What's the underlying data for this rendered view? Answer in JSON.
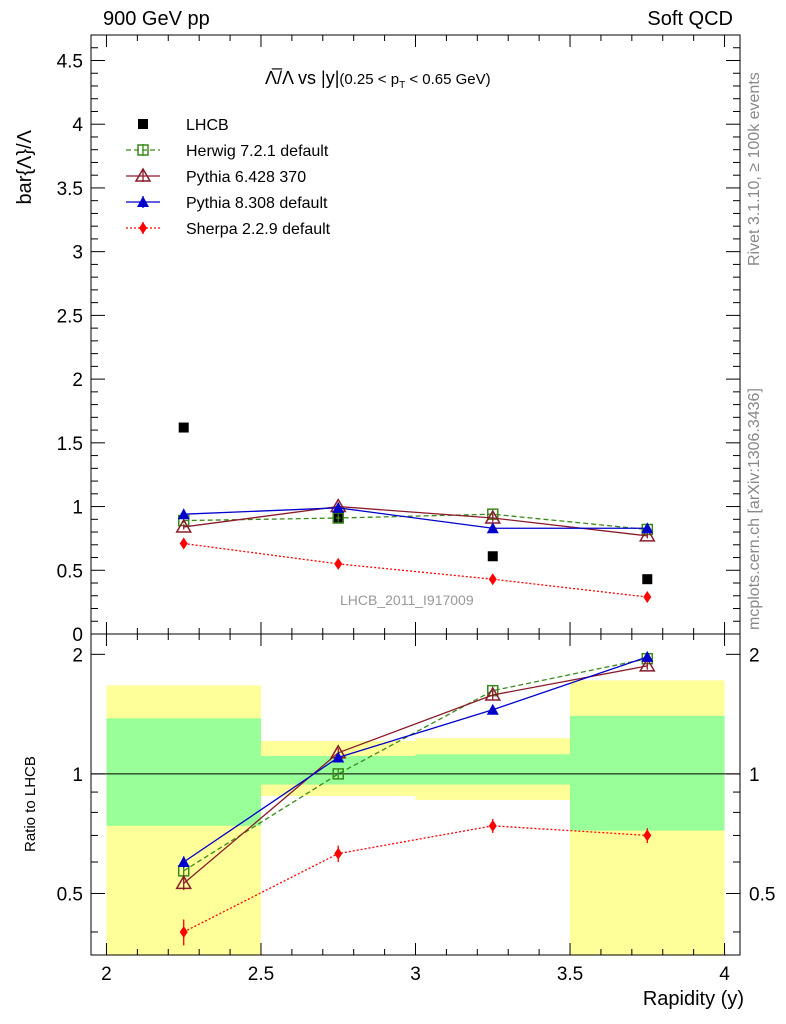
{
  "header": {
    "left": "900 GeV pp",
    "right": "Soft QCD"
  },
  "side_text": {
    "rivet": "Rivet 3.1.10, ≥ 100k events",
    "mcplots": "mcplots.cern.ch [arXiv:1306.3436]"
  },
  "plot_title": {
    "main": "Λ̅/Λ vs |y|",
    "sub_open": "(0.25 < p",
    "sub_T": "T",
    "sub_close": " < 0.65 GeV)"
  },
  "watermark": "LHCB_2011_I917009",
  "colors": {
    "data": "#000000",
    "herwig": "#3a8a1a",
    "pythia6": "#8b1a2b",
    "pythia8": "#0000cc",
    "sherpa": "#ff0000",
    "band_outer": "#ffff99",
    "band_inner": "#99ff99"
  },
  "chart_data": [
    {
      "type": "scatter",
      "panel": "main",
      "title": "Λ̅/Λ vs |y| (0.25 < pT < 0.65 GeV)",
      "ylabel": "bar{Λ}/Λ",
      "xlim": [
        1.95,
        4.05
      ],
      "ylim": [
        0,
        4.7
      ],
      "yticks": [
        0,
        0.5,
        1,
        1.5,
        2,
        2.5,
        3,
        3.5,
        4,
        4.5
      ],
      "ytick_labels": [
        "0",
        "0.5",
        "1",
        "1.5",
        "2",
        "2.5",
        "3",
        "3.5",
        "4",
        "4.5"
      ],
      "x": [
        2.25,
        2.75,
        3.25,
        3.75
      ],
      "series": [
        {
          "name": "LHCB",
          "values": [
            1.62,
            0.91,
            0.61,
            0.43
          ],
          "errors": [
            0.01,
            0.01,
            0.01,
            0.01
          ]
        },
        {
          "name": "Herwig 7.2.1 default",
          "values": [
            0.89,
            0.91,
            0.94,
            0.82
          ],
          "errors": [
            0.02,
            0.03,
            0.03,
            0.03
          ]
        },
        {
          "name": "Pythia 6.428 370",
          "values": [
            0.84,
            1.0,
            0.91,
            0.77
          ],
          "errors": [
            0.02,
            0.03,
            0.03,
            0.02
          ]
        },
        {
          "name": "Pythia 8.308 default",
          "values": [
            0.94,
            0.99,
            0.83,
            0.83
          ],
          "errors": [
            0.03,
            0.03,
            0.02,
            0.03
          ]
        },
        {
          "name": "Sherpa 2.2.9 default",
          "values": [
            0.71,
            0.55,
            0.43,
            0.29
          ],
          "errors": [
            0.03,
            0.02,
            0.02,
            0.02
          ]
        }
      ],
      "legend": "top-left"
    },
    {
      "type": "scatter",
      "panel": "ratio",
      "ylabel": "Ratio to LHCB",
      "xlabel": "Rapidity (y)",
      "xlim": [
        1.95,
        4.05
      ],
      "ylim": [
        0.35,
        2.25
      ],
      "xticks": [
        2,
        2.5,
        3,
        3.5,
        4
      ],
      "xtick_labels": [
        "2",
        "2.5",
        "3",
        "3.5",
        "4"
      ],
      "yticks": [
        0.5,
        1,
        2
      ],
      "ytick_labels": [
        "0.5",
        "1",
        "2"
      ],
      "x": [
        2.25,
        2.75,
        3.25,
        3.75
      ],
      "bins": [
        [
          2.0,
          2.5
        ],
        [
          2.5,
          3.0
        ],
        [
          3.0,
          3.5
        ],
        [
          3.5,
          4.0
        ]
      ],
      "band_outer": [
        [
          0.35,
          1.67
        ],
        [
          0.88,
          1.21
        ],
        [
          0.86,
          1.23
        ],
        [
          0.35,
          1.72
        ]
      ],
      "band_inner": [
        [
          0.74,
          1.38
        ],
        [
          0.94,
          1.11
        ],
        [
          0.94,
          1.12
        ],
        [
          0.72,
          1.4
        ]
      ],
      "series": [
        {
          "name": "Herwig 7.2.1 default",
          "values": [
            0.57,
            1.0,
            1.62,
            1.95
          ],
          "errors": [
            0.02,
            0.03,
            0.04,
            0.04
          ]
        },
        {
          "name": "Pythia 6.428 370",
          "values": [
            0.53,
            1.13,
            1.58,
            1.87
          ],
          "errors": [
            0.02,
            0.03,
            0.04,
            0.04
          ]
        },
        {
          "name": "Pythia 8.308 default",
          "values": [
            0.6,
            1.1,
            1.45,
            1.97
          ],
          "errors": [
            0.02,
            0.03,
            0.04,
            0.05
          ]
        },
        {
          "name": "Sherpa 2.2.9 default",
          "values": [
            0.4,
            0.63,
            0.74,
            0.7
          ],
          "errors": [
            0.03,
            0.03,
            0.03,
            0.03
          ]
        }
      ]
    }
  ]
}
